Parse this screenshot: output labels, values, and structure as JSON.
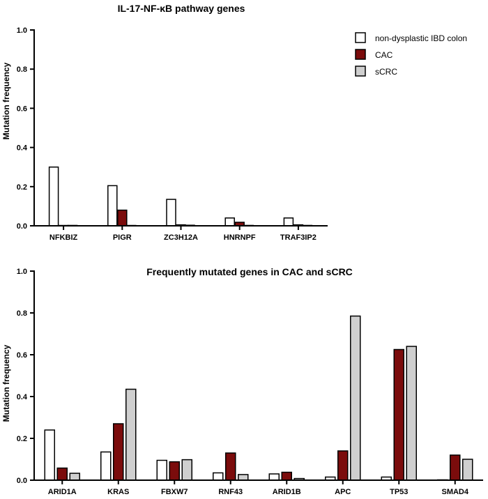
{
  "legend": {
    "position": "top-right",
    "items": [
      {
        "name": "non-dysplastic IBD colon",
        "color": "#ffffff"
      },
      {
        "name": "CAC",
        "color": "#7b0c0c"
      },
      {
        "name": "sCRC",
        "color": "#cfcfcf"
      }
    ]
  },
  "chart_data": [
    {
      "type": "bar",
      "title": "IL-17-NF-κB pathway genes",
      "xlabel": "",
      "ylabel": "Mutation frequency",
      "ylim": [
        0,
        1.0
      ],
      "yticks": [
        "0.0",
        "0.2",
        "0.4",
        "0.6",
        "0.8",
        "1.0"
      ],
      "categories": [
        "NFKBIZ",
        "PIGR",
        "ZC3H12A",
        "HNRNPF",
        "TRAF3IP2"
      ],
      "series": [
        {
          "name": "non-dysplastic IBD colon",
          "color": "#ffffff",
          "values": [
            0.3,
            0.205,
            0.135,
            0.04,
            0.04
          ]
        },
        {
          "name": "CAC",
          "color": "#7b0c0c",
          "values": [
            0.0,
            0.08,
            0.005,
            0.018,
            0.005
          ]
        },
        {
          "name": "sCRC",
          "color": "#cfcfcf",
          "values": [
            0.002,
            0.0,
            0.003,
            0.002,
            0.002
          ]
        }
      ],
      "grid": false
    },
    {
      "type": "bar",
      "title": "Frequently mutated genes in CAC and sCRC",
      "xlabel": "",
      "ylabel": "Mutation frequency",
      "ylim": [
        0,
        1.0
      ],
      "yticks": [
        "0.0",
        "0.2",
        "0.4",
        "0.6",
        "0.8",
        "1.0"
      ],
      "categories": [
        "ARID1A",
        "KRAS",
        "FBXW7",
        "RNF43",
        "ARID1B",
        "APC",
        "TP53",
        "SMAD4"
      ],
      "series": [
        {
          "name": "non-dysplastic IBD colon",
          "color": "#ffffff",
          "values": [
            0.24,
            0.135,
            0.095,
            0.035,
            0.03,
            0.015,
            0.015,
            0.0
          ]
        },
        {
          "name": "CAC",
          "color": "#7b0c0c",
          "values": [
            0.058,
            0.27,
            0.088,
            0.13,
            0.038,
            0.14,
            0.625,
            0.12
          ]
        },
        {
          "name": "sCRC",
          "color": "#cfcfcf",
          "values": [
            0.033,
            0.435,
            0.098,
            0.027,
            0.008,
            0.785,
            0.64,
            0.1
          ]
        }
      ],
      "grid": false
    }
  ]
}
